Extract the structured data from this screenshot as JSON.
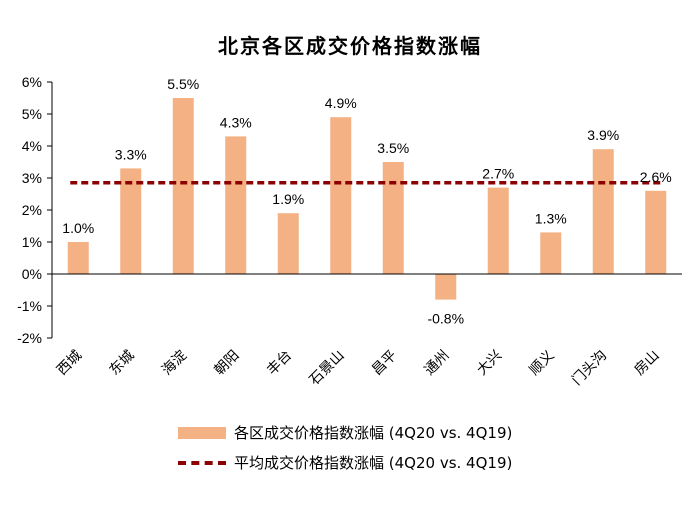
{
  "chart_data": {
    "type": "bar",
    "title": "北京各区成交价格指数涨幅",
    "categories": [
      "西城",
      "东城",
      "海淀",
      "朝阳",
      "丰台",
      "石景山",
      "昌平",
      "通州",
      "大兴",
      "顺义",
      "门头沟",
      "房山"
    ],
    "series": [
      {
        "name": "各区成交价格指数涨幅 (4Q20 vs. 4Q19)",
        "type": "bar",
        "color": "#f4b183",
        "values": [
          1.0,
          3.3,
          5.5,
          4.3,
          1.9,
          4.9,
          3.5,
          -0.8,
          2.7,
          1.3,
          3.9,
          2.6
        ],
        "data_labels": [
          "1.0%",
          "3.3%",
          "5.5%",
          "4.3%",
          "1.9%",
          "4.9%",
          "3.5%",
          "-0.8%",
          "2.7%",
          "1.3%",
          "3.9%",
          "2.6%"
        ]
      },
      {
        "name": "平均成交价格指数涨幅 (4Q20 vs. 4Q19)",
        "type": "line",
        "style": "dashed",
        "color": "#8b0000",
        "value": 2.85
      }
    ],
    "y_ticks": [
      -2,
      -1,
      0,
      1,
      2,
      3,
      4,
      5,
      6
    ],
    "y_tick_labels": [
      "-2%",
      "-1%",
      "0%",
      "1%",
      "2%",
      "3%",
      "4%",
      "5%",
      "6%"
    ],
    "ylim": [
      -2,
      6
    ],
    "xlabel": "",
    "ylabel": "",
    "grid": false,
    "legend_position": "bottom"
  }
}
